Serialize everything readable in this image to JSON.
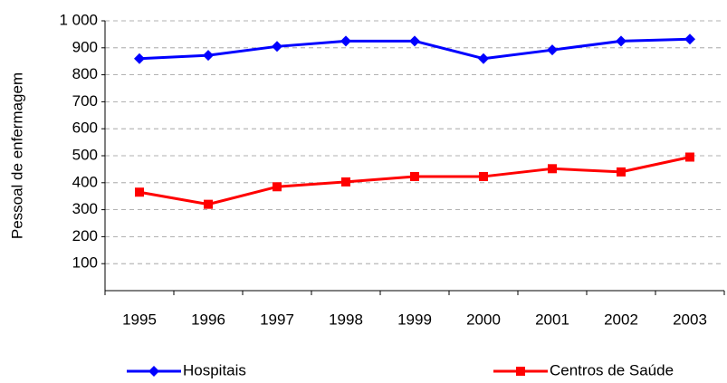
{
  "chart_data": {
    "type": "line",
    "y_label": "Pessoal de enfermagem",
    "categories": [
      "1995",
      "1996",
      "1997",
      "1998",
      "1999",
      "2000",
      "2001",
      "2002",
      "2003"
    ],
    "series": [
      {
        "name": "Hospitais",
        "color": "#0000ff",
        "marker": "diamond",
        "values": [
          860,
          872,
          905,
          925,
          925,
          860,
          892,
          925,
          932
        ]
      },
      {
        "name": "Centros de Saúde",
        "color": "#ff0000",
        "marker": "square",
        "values": [
          365,
          320,
          385,
          403,
          423,
          423,
          452,
          440,
          495
        ]
      }
    ],
    "ylim": [
      0,
      1000
    ],
    "yticks": [
      100,
      200,
      300,
      400,
      500,
      600,
      700,
      800,
      900,
      {
        "value": 1000,
        "label": "1 000"
      }
    ],
    "grid": true,
    "legend": "bottom"
  }
}
